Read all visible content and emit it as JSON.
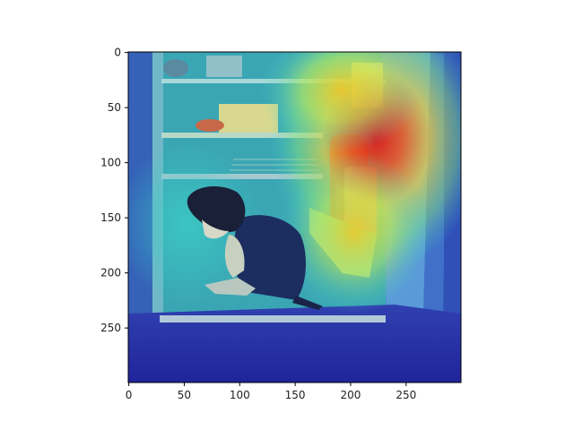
{
  "figure": {
    "type": "image-with-heatmap-overlay",
    "description": "Grayscale photo of a dog sitting inside an open refrigerator with a jet-colormap attention heatmap overlaid"
  },
  "axes": {
    "x": {
      "range": [
        0,
        299
      ],
      "ticks": [
        {
          "value": 0,
          "label": "0"
        },
        {
          "value": 50,
          "label": "50"
        },
        {
          "value": 100,
          "label": "100"
        },
        {
          "value": 150,
          "label": "150"
        },
        {
          "value": 200,
          "label": "200"
        },
        {
          "value": 250,
          "label": "250"
        }
      ]
    },
    "y": {
      "range": [
        0,
        299
      ],
      "inverted": true,
      "ticks": [
        {
          "value": 0,
          "label": "0"
        },
        {
          "value": 50,
          "label": "50"
        },
        {
          "value": 100,
          "label": "100"
        },
        {
          "value": 150,
          "label": "150"
        },
        {
          "value": 200,
          "label": "200"
        },
        {
          "value": 250,
          "label": "250"
        }
      ]
    }
  },
  "heatmap": {
    "colormap": "jet",
    "hotspots": [
      {
        "x": 235,
        "y": 85,
        "intensity": 1.0
      },
      {
        "x": 225,
        "y": 175,
        "intensity": 0.75
      },
      {
        "x": 195,
        "y": 40,
        "intensity": 0.6
      }
    ]
  },
  "colors": {
    "jet_low": "#1a1aa0",
    "jet_mid": "#30c8c8",
    "jet_high": "#e83020",
    "axis": "#000000"
  }
}
